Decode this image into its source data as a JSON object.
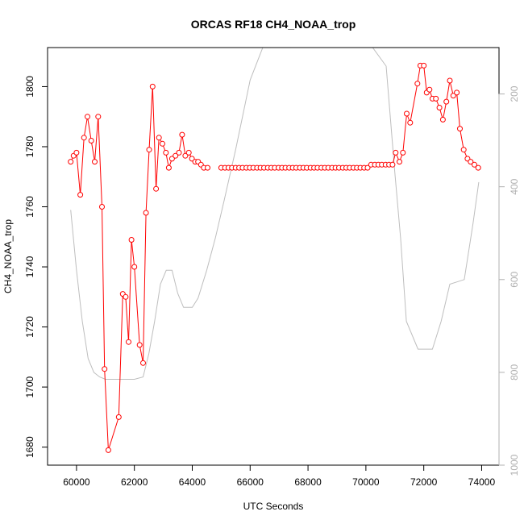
{
  "chart_data": {
    "type": "line",
    "title": "ORCAS RF18 CH4_NOAA_trop",
    "xlabel": "UTC Seconds",
    "ylabel": "CH4_NOAA_trop",
    "xlim": [
      59000,
      74600
    ],
    "ylim": [
      1674,
      1813
    ],
    "x_ticks": [
      60000,
      62000,
      64000,
      66000,
      68000,
      70000,
      72000,
      74000
    ],
    "y_ticks": [
      1680,
      1700,
      1720,
      1740,
      1760,
      1780,
      1800
    ],
    "y2_ticks": [
      200,
      400,
      600,
      800,
      1000
    ],
    "y2_range_top_bottom": [
      1000,
      100
    ],
    "colors": {
      "ch4": "#ff0000",
      "pressure": "#bebebe",
      "right_axis": "#b0b0b0"
    },
    "series": [
      {
        "values": [
          [
            59800,
            1775
          ],
          [
            59900,
            1777
          ],
          [
            60000,
            1778
          ],
          [
            60130,
            1764
          ],
          [
            60260,
            1783
          ],
          [
            60380,
            1790
          ],
          [
            60510,
            1782
          ],
          [
            60630,
            1775
          ],
          [
            60750,
            1790
          ],
          [
            60880,
            1760
          ],
          [
            60970,
            1706
          ],
          [
            61100,
            1679
          ],
          [
            61460,
            1690
          ],
          [
            61600,
            1731
          ],
          [
            61700,
            1730
          ],
          [
            61800,
            1715
          ],
          [
            61900,
            1749
          ],
          [
            62000,
            1740
          ],
          [
            62180,
            1714
          ],
          [
            62300,
            1708
          ],
          [
            62400,
            1758
          ],
          [
            62510,
            1779
          ],
          [
            62630,
            1800
          ],
          [
            62750,
            1766
          ],
          [
            62850,
            1783
          ],
          [
            62970,
            1781
          ],
          [
            63090,
            1778
          ],
          [
            63190,
            1773
          ],
          [
            63300,
            1776
          ],
          [
            63420,
            1777
          ],
          [
            63540,
            1778
          ],
          [
            63650,
            1784
          ],
          [
            63760,
            1777
          ],
          [
            63880,
            1778
          ],
          [
            63990,
            1776
          ],
          [
            64100,
            1775
          ],
          [
            64200,
            1775
          ],
          [
            64300,
            1774
          ],
          [
            64400,
            1773
          ],
          [
            64530,
            1773
          ],
          [
            65000,
            1773
          ],
          [
            65130,
            1773
          ],
          [
            65250,
            1773
          ],
          [
            65370,
            1773
          ],
          [
            65500,
            1773
          ],
          [
            65620,
            1773
          ],
          [
            65740,
            1773
          ],
          [
            65870,
            1773
          ],
          [
            65990,
            1773
          ],
          [
            66110,
            1773
          ],
          [
            66240,
            1773
          ],
          [
            66360,
            1773
          ],
          [
            66480,
            1773
          ],
          [
            66610,
            1773
          ],
          [
            66730,
            1773
          ],
          [
            66850,
            1773
          ],
          [
            66980,
            1773
          ],
          [
            67100,
            1773
          ],
          [
            67220,
            1773
          ],
          [
            67350,
            1773
          ],
          [
            67470,
            1773
          ],
          [
            67590,
            1773
          ],
          [
            67720,
            1773
          ],
          [
            67840,
            1773
          ],
          [
            67960,
            1773
          ],
          [
            68090,
            1773
          ],
          [
            68210,
            1773
          ],
          [
            68330,
            1773
          ],
          [
            68460,
            1773
          ],
          [
            68580,
            1773
          ],
          [
            68700,
            1773
          ],
          [
            68830,
            1773
          ],
          [
            68950,
            1773
          ],
          [
            69070,
            1773
          ],
          [
            69200,
            1773
          ],
          [
            69320,
            1773
          ],
          [
            69440,
            1773
          ],
          [
            69570,
            1773
          ],
          [
            69690,
            1773
          ],
          [
            69810,
            1773
          ],
          [
            69940,
            1773
          ],
          [
            70060,
            1773
          ],
          [
            70180,
            1774
          ],
          [
            70310,
            1774
          ],
          [
            70430,
            1774
          ],
          [
            70550,
            1774
          ],
          [
            70680,
            1774
          ],
          [
            70800,
            1774
          ],
          [
            70920,
            1774
          ],
          [
            71030,
            1778
          ],
          [
            71160,
            1775
          ],
          [
            71280,
            1778
          ],
          [
            71410,
            1791
          ],
          [
            71530,
            1788
          ],
          [
            71780,
            1801
          ],
          [
            71880,
            1807
          ],
          [
            72000,
            1807
          ],
          [
            72100,
            1798
          ],
          [
            72200,
            1799
          ],
          [
            72300,
            1796
          ],
          [
            72420,
            1796
          ],
          [
            72540,
            1793
          ],
          [
            72660,
            1789
          ],
          [
            72780,
            1795
          ],
          [
            72900,
            1802
          ],
          [
            73020,
            1797
          ],
          [
            73140,
            1798
          ],
          [
            73250,
            1786
          ],
          [
            73380,
            1779
          ],
          [
            73510,
            1776
          ],
          [
            73620,
            1775
          ],
          [
            73750,
            1774
          ],
          [
            73880,
            1773
          ]
        ]
      },
      {
        "axis": "right",
        "values": [
          [
            59800,
            450
          ],
          [
            60000,
            580
          ],
          [
            60200,
            690
          ],
          [
            60400,
            770
          ],
          [
            60600,
            800
          ],
          [
            60800,
            810
          ],
          [
            61000,
            815
          ],
          [
            61500,
            815
          ],
          [
            62000,
            815
          ],
          [
            62300,
            810
          ],
          [
            62500,
            760
          ],
          [
            62700,
            690
          ],
          [
            62900,
            610
          ],
          [
            63100,
            580
          ],
          [
            63300,
            580
          ],
          [
            63500,
            630
          ],
          [
            63700,
            660
          ],
          [
            64000,
            660
          ],
          [
            64200,
            640
          ],
          [
            64500,
            580
          ],
          [
            64800,
            510
          ],
          [
            65100,
            430
          ],
          [
            65500,
            320
          ],
          [
            66000,
            170
          ],
          [
            66500,
            90
          ],
          [
            66700,
            100
          ],
          [
            67000,
            80
          ],
          [
            67400,
            100
          ],
          [
            68000,
            80
          ],
          [
            68800,
            100
          ],
          [
            69100,
            80
          ],
          [
            70000,
            80
          ],
          [
            70700,
            140
          ],
          [
            71000,
            370
          ],
          [
            71200,
            510
          ],
          [
            71400,
            690
          ],
          [
            71800,
            750
          ],
          [
            72300,
            750
          ],
          [
            72600,
            690
          ],
          [
            72900,
            610
          ],
          [
            73400,
            600
          ],
          [
            73700,
            480
          ],
          [
            73900,
            390
          ]
        ]
      }
    ]
  }
}
